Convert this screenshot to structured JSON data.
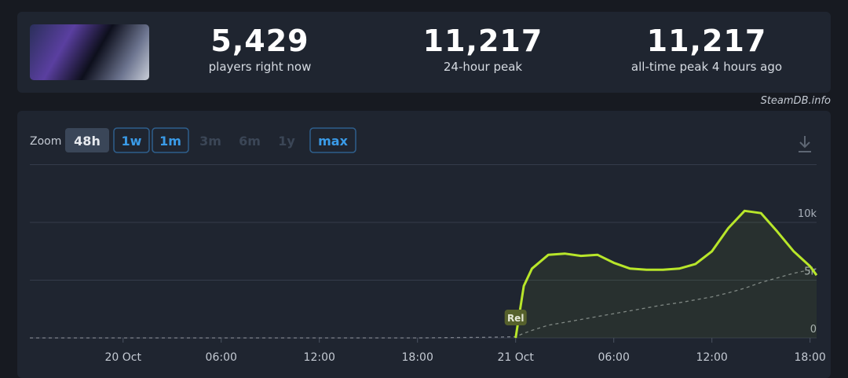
{
  "header": {
    "stats": [
      {
        "value": "5,429",
        "label": "players right now"
      },
      {
        "value": "11,217",
        "label": "24-hour peak"
      },
      {
        "value": "11,217",
        "label": "all-time peak 4 hours ago"
      }
    ],
    "credit": "SteamDB.info"
  },
  "zoom": {
    "label": "Zoom",
    "options": [
      "48h",
      "1w",
      "1m",
      "3m",
      "6m",
      "1y",
      "max"
    ]
  },
  "chart_data": {
    "type": "line",
    "x": [
      -5.7,
      0,
      6,
      12,
      18,
      22,
      24,
      24.5,
      25,
      26,
      27,
      28,
      29,
      30,
      31,
      32,
      33,
      34,
      35,
      36,
      37,
      38,
      39,
      40,
      41,
      42,
      42.4
    ],
    "series": [
      {
        "color": "#b8e62a",
        "values": [
          null,
          null,
          null,
          null,
          null,
          null,
          0,
          4500,
          6000,
          7200,
          7300,
          7100,
          7200,
          6500,
          6000,
          5900,
          5900,
          6000,
          6400,
          7500,
          9500,
          11000,
          10800,
          9200,
          7500,
          6200,
          5429
        ]
      },
      {
        "color": "#7d828b",
        "values": [
          0,
          0,
          0,
          0,
          0,
          50,
          100,
          400,
          650,
          1100,
          1350,
          1600,
          1850,
          2100,
          2350,
          2600,
          2850,
          3050,
          3300,
          3550,
          3900,
          4300,
          4800,
          5200,
          5600,
          5900,
          6000
        ]
      }
    ],
    "xlim": [
      -5.7,
      42.4
    ],
    "xticks": [
      {
        "value": 0,
        "label": "20 Oct"
      },
      {
        "value": 6,
        "label": "06:00"
      },
      {
        "value": 12,
        "label": "12:00"
      },
      {
        "value": 18,
        "label": "18:00"
      },
      {
        "value": 24,
        "label": "21 Oct"
      },
      {
        "value": 30,
        "label": "06:00"
      },
      {
        "value": 36,
        "label": "12:00"
      },
      {
        "value": 42,
        "label": "18:00"
      }
    ],
    "ylim": [
      0,
      15000
    ],
    "yticks": [
      0,
      {
        "value": 5000,
        "label": "5k"
      },
      {
        "value": 10000,
        "label": "10k"
      }
    ],
    "grid": true,
    "annotations": [
      {
        "x": 24,
        "text": "Rel"
      }
    ]
  }
}
